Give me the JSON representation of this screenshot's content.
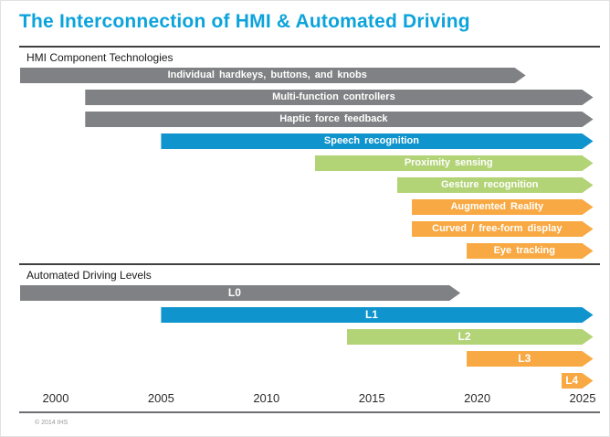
{
  "title": "The Interconnection of HMI & Automated Driving",
  "footer": {
    "copyright": "© 2014 IHS"
  },
  "colors": {
    "title": "#0CA3DB",
    "gray": "#808184",
    "blue": "#1094CE",
    "green": "#B2D376",
    "orange": "#F8A943"
  },
  "chart_data": {
    "type": "bar",
    "subtype": "timeline-gantt-arrows",
    "title": "The Interconnection of HMI & Automated Driving",
    "xlabel": "Year",
    "axis": {
      "min": 1998.3,
      "max": 2026,
      "ticks": [
        "2000",
        "2005",
        "2010",
        "2015",
        "2020",
        "2025"
      ],
      "tick_values": [
        2000,
        2005,
        2010,
        2015,
        2020,
        2025
      ]
    },
    "legend": "none",
    "grid": false,
    "sections": [
      {
        "label": "HMI Component Technologies",
        "bars": [
          {
            "label": "Individual hardkeys, buttons, and knobs",
            "start": 1998.3,
            "end": 2022.3,
            "color": "gray"
          },
          {
            "label": "Multi-function controllers",
            "start": 2001.4,
            "end": 2025.5,
            "color": "gray"
          },
          {
            "label": "Haptic force feedback",
            "start": 2001.4,
            "end": 2025.5,
            "color": "gray"
          },
          {
            "label": "Speech recognition",
            "start": 2005.0,
            "end": 2025.5,
            "color": "blue"
          },
          {
            "label": "Proximity sensing",
            "start": 2012.3,
            "end": 2025.5,
            "color": "green"
          },
          {
            "label": "Gesture recognition",
            "start": 2016.2,
            "end": 2025.5,
            "color": "green"
          },
          {
            "label": "Augmented Reality",
            "start": 2016.9,
            "end": 2025.5,
            "color": "orange"
          },
          {
            "label": "Curved / free-form display",
            "start": 2016.9,
            "end": 2025.5,
            "color": "orange"
          },
          {
            "label": "Eye tracking",
            "start": 2019.5,
            "end": 2025.5,
            "color": "orange"
          }
        ]
      },
      {
        "label": "Automated Driving Levels",
        "bars": [
          {
            "label": "L0",
            "start": 1998.3,
            "end": 2019.2,
            "color": "gray"
          },
          {
            "label": "L1",
            "start": 2005.0,
            "end": 2025.5,
            "color": "blue"
          },
          {
            "label": "L2",
            "start": 2013.8,
            "end": 2025.5,
            "color": "green"
          },
          {
            "label": "L3",
            "start": 2019.5,
            "end": 2025.5,
            "color": "orange"
          },
          {
            "label": "L4",
            "start": 2024.0,
            "end": 2025.5,
            "color": "orange"
          }
        ]
      }
    ]
  }
}
